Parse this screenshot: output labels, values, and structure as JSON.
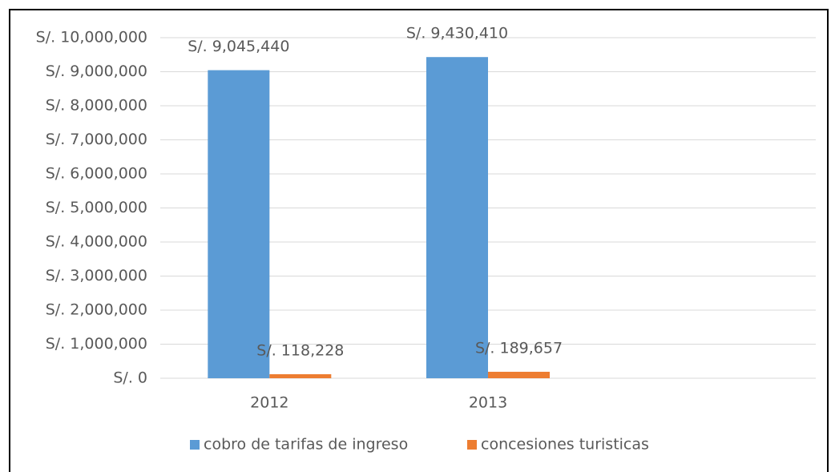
{
  "chart_data": {
    "type": "bar",
    "categories": [
      "2012",
      "2013",
      null
    ],
    "series": [
      {
        "name": "cobro de tarifas de ingreso",
        "color": "#5b9bd5",
        "values": [
          9045440,
          9430410,
          null
        ],
        "value_labels": [
          "S/. 9,045,440",
          "S/. 9,430,410",
          null
        ]
      },
      {
        "name": "concesiones turisticas",
        "color": "#ed7d31",
        "values": [
          118228,
          189657,
          null
        ],
        "value_labels": [
          "S/. 118,228",
          "S/. 189,657",
          null
        ]
      }
    ],
    "ylim": [
      0,
      10000000
    ],
    "yticks": [
      {
        "value": 0,
        "label": "S/. 0"
      },
      {
        "value": 1000000,
        "label": "S/. 1,000,000"
      },
      {
        "value": 2000000,
        "label": "S/. 2,000,000"
      },
      {
        "value": 3000000,
        "label": "S/. 3,000,000"
      },
      {
        "value": 4000000,
        "label": "S/. 4,000,000"
      },
      {
        "value": 5000000,
        "label": "S/. 5,000,000"
      },
      {
        "value": 6000000,
        "label": "S/. 6,000,000"
      },
      {
        "value": 7000000,
        "label": "S/. 7,000,000"
      },
      {
        "value": 8000000,
        "label": "S/. 8,000,000"
      },
      {
        "value": 9000000,
        "label": "S/. 9,000,000"
      },
      {
        "value": 10000000,
        "label": "S/. 10,000,000"
      }
    ],
    "grid": true,
    "legend": "bottom"
  }
}
